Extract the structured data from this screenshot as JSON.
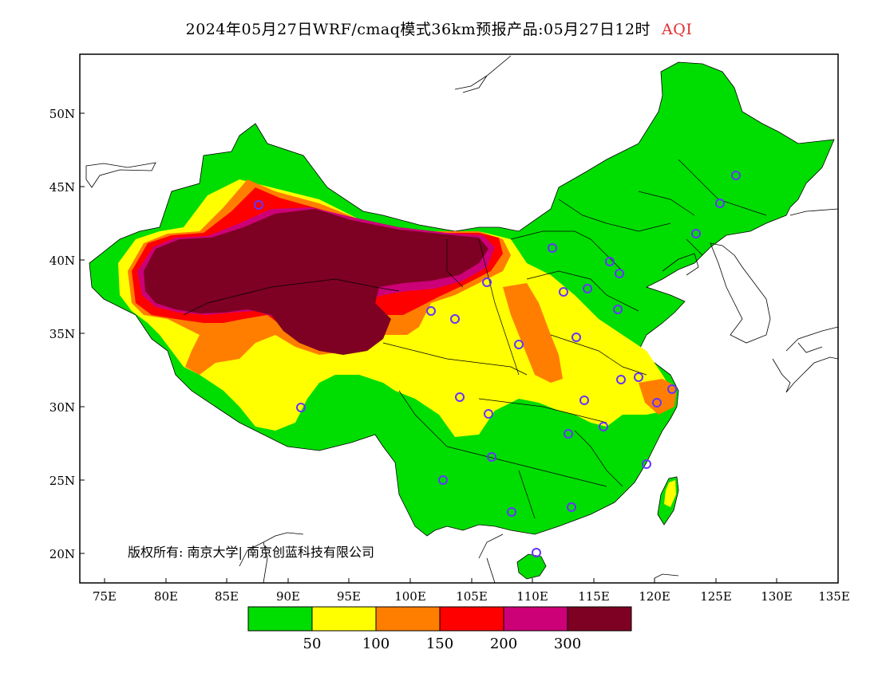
{
  "title": {
    "main": "2024年05月27日WRF/cmaq模式36km预报产品:05月27日12时",
    "variable": "AQI",
    "variable_color": "#e03030"
  },
  "axes": {
    "lat_labels": [
      "50N",
      "45N",
      "40N",
      "35N",
      "30N",
      "25N",
      "20N"
    ],
    "lon_labels": [
      "75E",
      "80E",
      "85E",
      "90E",
      "95E",
      "100E",
      "105E",
      "110E",
      "115E",
      "120E",
      "125E",
      "130E",
      "135E"
    ]
  },
  "copyright": "版权所有: 南京大学| 南京创蓝科技有限公司",
  "colorbar": {
    "colors": [
      "#00dd00",
      "#ffff00",
      "#ff7e00",
      "#ff0000",
      "#cc0077",
      "#7e0023"
    ],
    "labels": [
      "50",
      "100",
      "150",
      "200",
      "300"
    ]
  },
  "legend_meaning": {
    "green": "AQI < 50",
    "yellow": "50-100",
    "orange": "100-150",
    "red": "150-200",
    "purple": "200-300",
    "maroon": "> 300"
  },
  "icons": {
    "city_marker": "circle-icon"
  }
}
